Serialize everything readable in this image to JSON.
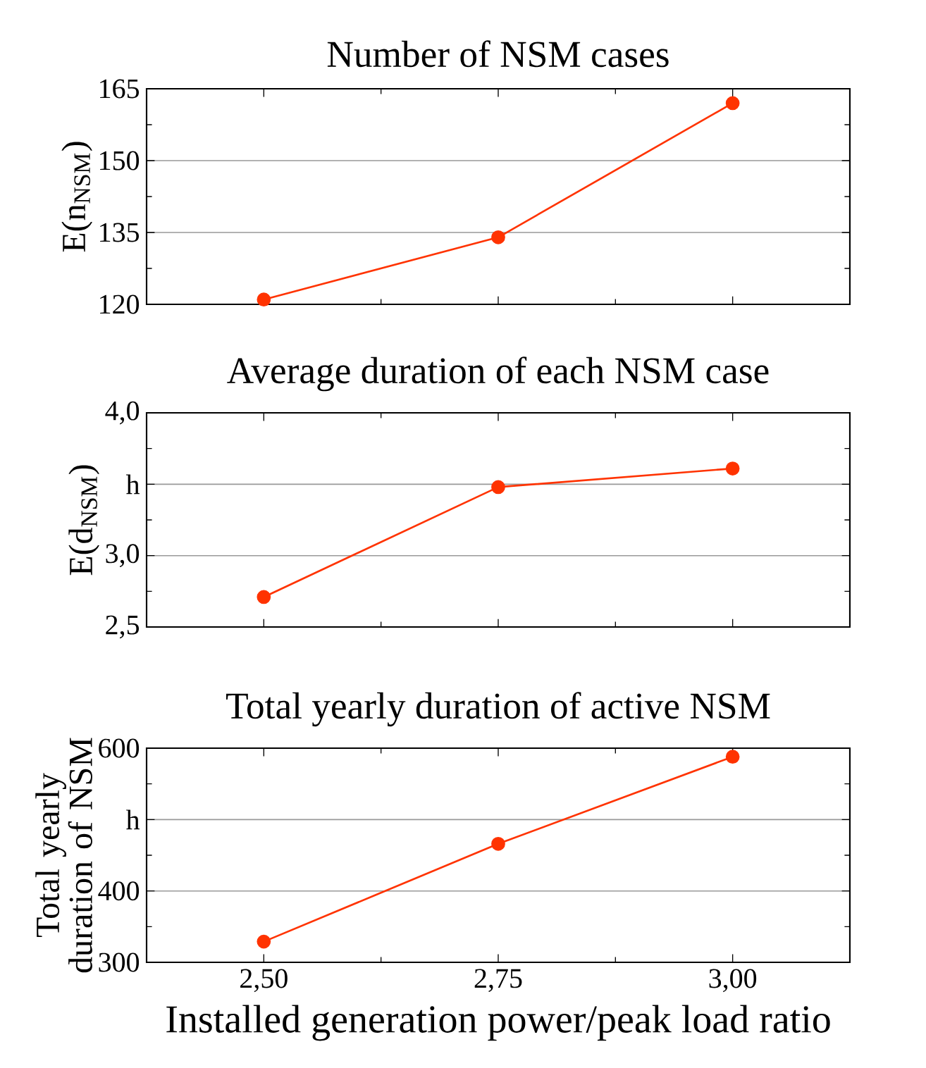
{
  "chart_data": [
    {
      "type": "line",
      "title": "Number of NSM cases",
      "ylabel": "E(n$_{NSM}$)",
      "x": [
        2.5,
        2.75,
        3.0
      ],
      "series": [
        {
          "color": "#ff3300",
          "values": [
            121,
            134,
            162
          ]
        }
      ],
      "xlim": [
        2.375,
        3.125
      ],
      "xticks": [
        {
          "value": 2.5,
          "label": null
        },
        {
          "value": 2.75,
          "label": null
        },
        {
          "value": 3.0,
          "label": null
        }
      ],
      "ylim": [
        120,
        165
      ],
      "yticks": [
        120,
        135,
        150,
        165
      ],
      "grid": "y",
      "marker": "circle",
      "line_style": "solid",
      "tick_labels": "y"
    },
    {
      "type": "line",
      "title": "Average duration of each NSM case",
      "ylabel": "E(d$_{NSM}$)",
      "x": [
        2.5,
        2.75,
        3.0
      ],
      "series": [
        {
          "color": "#ff3300",
          "values": [
            2.71,
            3.48,
            3.61
          ]
        }
      ],
      "xlim": [
        2.375,
        3.125
      ],
      "xticks": [
        {
          "value": 2.5,
          "label": null
        },
        {
          "value": 2.75,
          "label": null
        },
        {
          "value": 3.0,
          "label": null
        }
      ],
      "ylim": [
        2.5,
        4.0
      ],
      "yticks": [
        {
          "value": 2.5,
          "label": "2,5"
        },
        {
          "value": 3.0,
          "label": "3,0"
        },
        {
          "value": 3.5,
          "label": "h"
        },
        {
          "value": 4.0,
          "label": "4,0"
        }
      ],
      "grid": "y",
      "marker": "circle",
      "line_style": "solid",
      "tick_labels": "y"
    },
    {
      "type": "line",
      "title": "Total yearly duration of active NSM",
      "ylabel": "Total yearly duration of NSM",
      "xlabel": "Installed generation power/peak load ratio",
      "x": [
        2.5,
        2.75,
        3.0
      ],
      "series": [
        {
          "color": "#ff3300",
          "values": [
            329,
            466,
            588
          ]
        }
      ],
      "xlim": [
        2.375,
        3.125
      ],
      "xticks": [
        {
          "value": 2.5,
          "label": "2,50"
        },
        {
          "value": 2.75,
          "label": "2,75"
        },
        {
          "value": 3.0,
          "label": "3,00"
        }
      ],
      "ylim": [
        300,
        600
      ],
      "yticks": [
        300,
        400,
        {
          "value": 500,
          "label": "h"
        },
        600
      ],
      "grid": "y",
      "marker": "circle",
      "line_style": "solid"
    }
  ]
}
